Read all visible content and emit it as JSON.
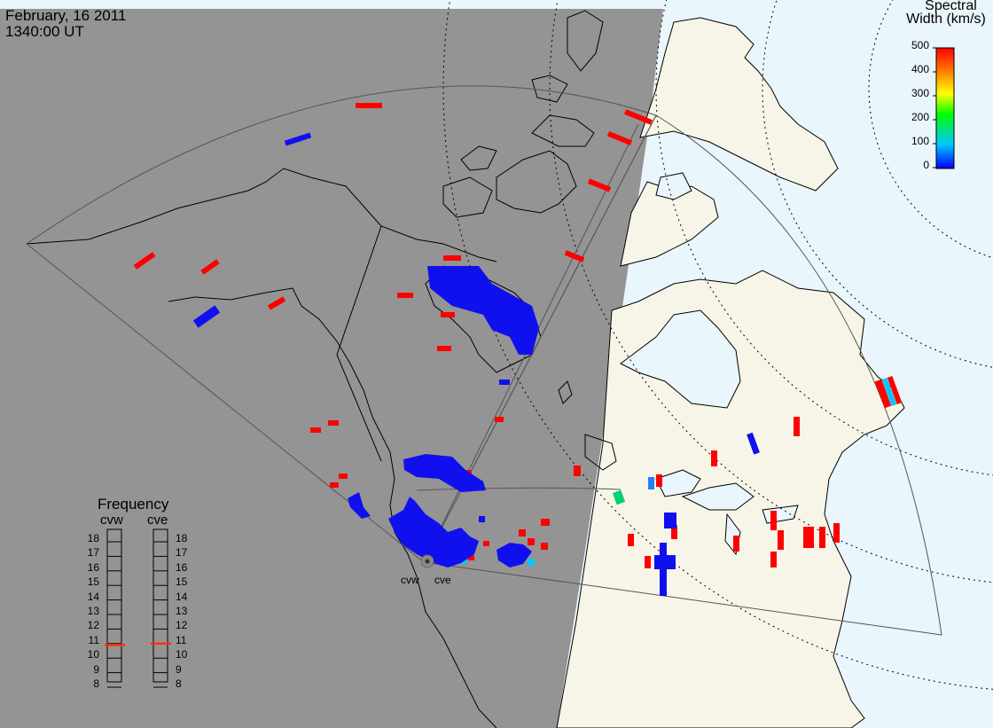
{
  "header": {
    "date": "February, 16 2011",
    "time": "1340:00 UT"
  },
  "colors": {
    "night": "#949494",
    "day_land": "#f7f5e8",
    "day_ocean": "#e9f6fb",
    "coast": "#000000",
    "fov": "#555555",
    "frequency_marker": "#ff3300"
  },
  "spectral_width_scale": {
    "title_line1": "Spectral",
    "title_line2": "Width (km/s)",
    "ticks": [
      "500",
      "400",
      "300",
      "200",
      "100",
      "0"
    ],
    "colors": [
      "#0000ff",
      "#00c8ff",
      "#00ff00",
      "#ffff00",
      "#ff8000",
      "#ff0000"
    ]
  },
  "frequency_panel": {
    "title": "Frequency",
    "radar_left": "cvw",
    "radar_right": "cve",
    "ticks": [
      "18",
      "17",
      "16",
      "15",
      "14",
      "13",
      "12",
      "11",
      "10",
      "9",
      "8"
    ],
    "cvw_mhz": 10.6,
    "cve_mhz": 10.7
  },
  "radars": [
    {
      "code": "cvw",
      "label": "cvw"
    },
    {
      "code": "cve",
      "label": "cve"
    }
  ],
  "icons": [
    "radar-site-icon"
  ]
}
